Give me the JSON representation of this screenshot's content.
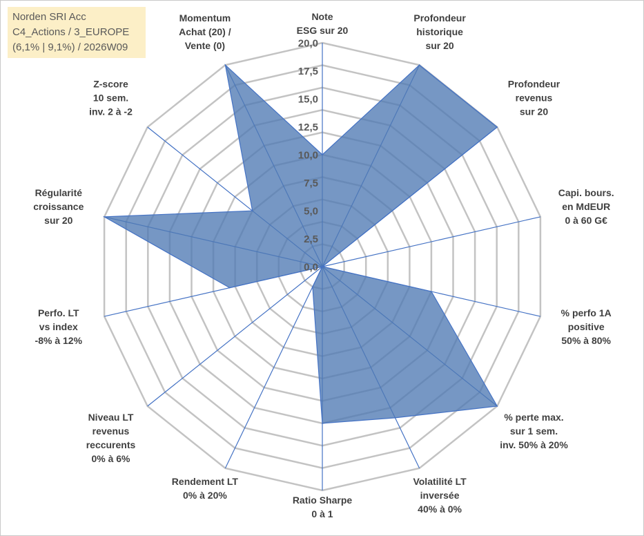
{
  "header": {
    "lines": [
      "Norden SRI Acc",
      "C4_Actions / 3_EUROPE",
      "(6,1% | 9,1%) / 2026W09"
    ]
  },
  "chart_data": {
    "type": "radar",
    "rmax": 20,
    "ticks": [
      "0,0",
      "2,5",
      "5,0",
      "7,5",
      "10,0",
      "12,5",
      "15,0",
      "17,5",
      "20,0"
    ],
    "tick_values": [
      0,
      2.5,
      5,
      7.5,
      10,
      12.5,
      15,
      17.5,
      20
    ],
    "grid_step": 2,
    "colors": {
      "fill": "#4f7ab3",
      "line": "#4472c4",
      "grid": "#c3c3c3"
    },
    "axes": [
      {
        "label": [
          "Note",
          "ESG sur 20"
        ],
        "value": 10
      },
      {
        "label": [
          "Profondeur",
          "historique",
          "sur 20"
        ],
        "value": 20
      },
      {
        "label": [
          "Profondeur",
          "revenus",
          "sur 20"
        ],
        "value": 20
      },
      {
        "label": [
          "Capi. bours.",
          "en MdEUR",
          "0 à 60 G€"
        ],
        "value": 0
      },
      {
        "label": [
          "% perfo 1A",
          "positive",
          "50% à 80%"
        ],
        "value": 10
      },
      {
        "label": [
          "% perte max.",
          "sur 1 sem.",
          "inv. 50% à 20%"
        ],
        "value": 20
      },
      {
        "label": [
          "Volatilité LT",
          "inversée",
          "40% à 0%"
        ],
        "value": 15
      },
      {
        "label": [
          "Ratio Sharpe",
          "0 à 1"
        ],
        "value": 14
      },
      {
        "label": [
          "Rendement LT",
          "0% à 20%"
        ],
        "value": 2
      },
      {
        "label": [
          "Niveau LT",
          "revenus",
          "reccurents",
          "0% à 6%"
        ],
        "value": 0
      },
      {
        "label": [
          "Perfo. LT",
          "vs index",
          "-8% à 12%"
        ],
        "value": 8.5
      },
      {
        "label": [
          "Régularité",
          "croissance",
          "sur 20"
        ],
        "value": 20
      },
      {
        "label": [
          "Z-score",
          "10 sem.",
          "inv. 2 à -2"
        ],
        "value": 8
      },
      {
        "label": [
          "Momentum",
          "Achat (20) /",
          "Vente (0)"
        ],
        "value": 20
      }
    ]
  }
}
